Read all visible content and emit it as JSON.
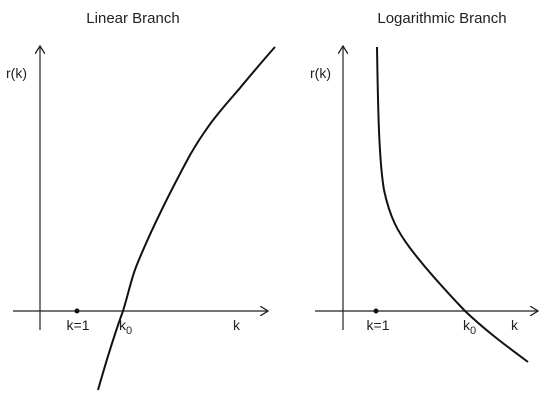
{
  "panels": [
    {
      "title": "Linear Branch",
      "y_label": "r(k)",
      "x_label": "k",
      "point_1": "k=1",
      "point_0": {
        "text": "k",
        "subscript": "0"
      }
    },
    {
      "title": "Logarithmic Branch",
      "y_label": "r(k)",
      "x_label": "k",
      "point_1": "k=1",
      "point_0": {
        "text": "k",
        "subscript": "0"
      }
    }
  ]
}
